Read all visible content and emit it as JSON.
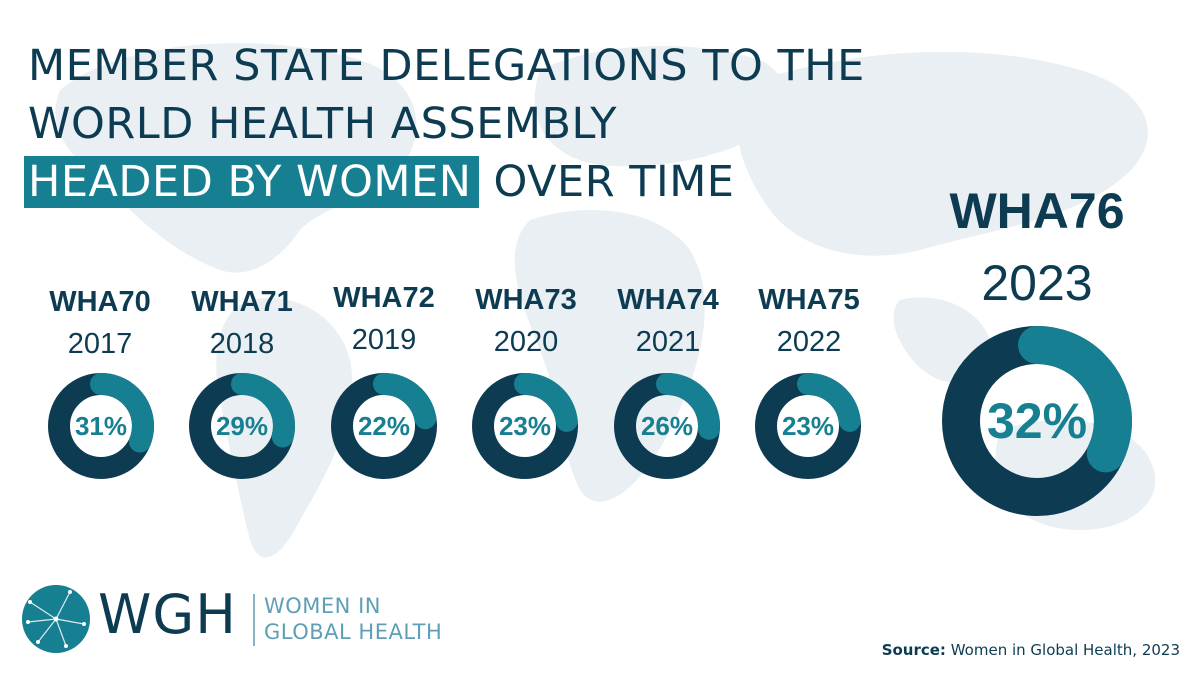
{
  "title": {
    "line1": "MEMBER STATE DELEGATIONS TO THE",
    "line2": "WORLD HEALTH ASSEMBLY",
    "highlight": "HEADED BY WOMEN",
    "rest": "OVER TIME"
  },
  "chart_data": {
    "type": "donut",
    "unit": "%",
    "items": [
      {
        "label": "WHA70",
        "year": "2017",
        "value": 31,
        "display": "31%"
      },
      {
        "label": "WHA71",
        "year": "2018",
        "value": 29,
        "display": "29%"
      },
      {
        "label": "WHA72",
        "year": "2019",
        "value": 22,
        "display": "22%"
      },
      {
        "label": "WHA73",
        "year": "2020",
        "value": 23,
        "display": "23%"
      },
      {
        "label": "WHA74",
        "year": "2021",
        "value": 26,
        "display": "26%"
      },
      {
        "label": "WHA75",
        "year": "2022",
        "value": 23,
        "display": "23%"
      },
      {
        "label": "WHA76",
        "year": "2023",
        "value": 32,
        "display": "32%"
      }
    ]
  },
  "colors": {
    "dark_navy": "#0d3b52",
    "teal": "#167f91",
    "map_gray": "#e8eef1"
  },
  "logo": {
    "acronym": "WGH",
    "line1": "WOMEN IN",
    "line2": "GLOBAL HEALTH"
  },
  "source": {
    "label": "Source:",
    "text": "Women in Global Health, 2023"
  }
}
